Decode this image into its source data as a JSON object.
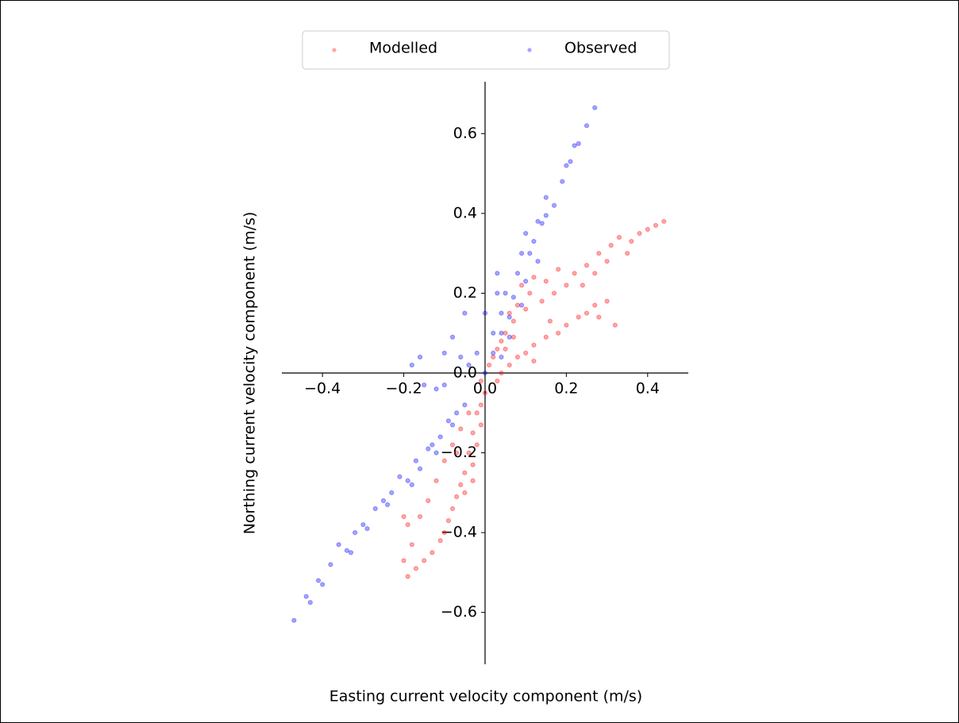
{
  "chart_data": {
    "type": "scatter",
    "xlabel": "Easting current velocity component (m/s)",
    "ylabel": "Northing current velocity component (m/s)",
    "xlim": [
      -0.5,
      0.5
    ],
    "ylim": [
      -0.73,
      0.73
    ],
    "xticks": [
      {
        "value": -0.4,
        "label": "−0.4"
      },
      {
        "value": -0.2,
        "label": "−0.2"
      },
      {
        "value": 0,
        "label": "0.0"
      },
      0.2,
      0.4
    ],
    "yticks": [
      {
        "value": -0.6,
        "label": "−0.6"
      },
      {
        "value": -0.4,
        "label": "−0.4"
      },
      {
        "value": -0.2,
        "label": "−0.2"
      },
      {
        "value": 0,
        "label": "0.0"
      },
      0.2,
      0.4,
      0.6
    ],
    "legend": "upper center",
    "series": [
      {
        "name": "Modelled",
        "color": "#ff0000",
        "x": [
          0.44,
          0.42,
          0.4,
          0.38,
          0.36,
          0.35,
          0.33,
          0.31,
          0.3,
          0.28,
          0.27,
          0.25,
          0.24,
          0.22,
          0.2,
          0.18,
          0.17,
          0.15,
          0.14,
          0.12,
          0.11,
          0.1,
          0.09,
          0.08,
          0.07,
          0.06,
          0.05,
          0.04,
          0.03,
          0.02,
          0.01,
          0.3,
          0.27,
          0.25,
          0.23,
          0.2,
          0.18,
          0.15,
          0.12,
          0.1,
          0.08,
          0.06,
          0.04,
          0.03,
          0.12,
          0.16,
          0.32,
          0.28,
          0.07,
          0.05,
          0.0,
          -0.01,
          -0.02,
          -0.01,
          -0.03,
          -0.02,
          -0.04,
          -0.03,
          -0.05,
          -0.06,
          -0.07,
          -0.08,
          -0.09,
          -0.1,
          -0.11,
          -0.13,
          -0.15,
          -0.17,
          -0.19,
          -0.2,
          -0.18,
          -0.19,
          -0.16,
          -0.14,
          -0.12,
          -0.1,
          -0.08,
          -0.06,
          -0.04,
          -0.2,
          -0.05,
          -0.03,
          -0.07,
          -0.01
        ],
        "y": [
          0.38,
          0.37,
          0.36,
          0.35,
          0.33,
          0.3,
          0.34,
          0.32,
          0.28,
          0.3,
          0.25,
          0.27,
          0.22,
          0.25,
          0.22,
          0.26,
          0.2,
          0.23,
          0.18,
          0.24,
          0.2,
          0.16,
          0.22,
          0.17,
          0.13,
          0.15,
          0.1,
          0.08,
          0.06,
          0.04,
          0.02,
          0.18,
          0.17,
          0.15,
          0.14,
          0.12,
          0.1,
          0.09,
          0.07,
          0.05,
          0.04,
          0.02,
          0.0,
          -0.02,
          0.03,
          0.13,
          0.12,
          0.14,
          0.09,
          0.06,
          -0.05,
          -0.08,
          -0.1,
          -0.13,
          -0.15,
          -0.18,
          -0.2,
          -0.23,
          -0.25,
          -0.28,
          -0.31,
          -0.34,
          -0.37,
          -0.4,
          -0.42,
          -0.45,
          -0.47,
          -0.49,
          -0.51,
          -0.47,
          -0.43,
          -0.38,
          -0.36,
          -0.32,
          -0.27,
          -0.22,
          -0.18,
          -0.14,
          -0.1,
          -0.36,
          -0.3,
          -0.27,
          -0.2,
          -0.02
        ]
      },
      {
        "name": "Observed",
        "color": "#0000ff",
        "x": [
          0.27,
          0.25,
          0.23,
          0.22,
          0.21,
          0.2,
          0.19,
          0.15,
          0.17,
          0.15,
          0.14,
          0.13,
          0.1,
          0.12,
          0.09,
          0.11,
          0.13,
          0.03,
          0.08,
          0.1,
          0.03,
          0.05,
          0.07,
          0.09,
          0.0,
          0.04,
          0.06,
          -0.05,
          0.02,
          0.04,
          0.06,
          -0.08,
          -0.02,
          0.02,
          0.04,
          -0.1,
          -0.06,
          0.0,
          -0.04,
          -0.47,
          -0.44,
          -0.43,
          -0.41,
          -0.4,
          -0.38,
          -0.36,
          -0.34,
          -0.33,
          -0.32,
          -0.3,
          -0.29,
          -0.27,
          -0.25,
          -0.24,
          -0.23,
          -0.21,
          -0.19,
          -0.18,
          -0.17,
          -0.16,
          -0.14,
          -0.13,
          -0.12,
          -0.11,
          -0.09,
          -0.08,
          -0.07,
          -0.05,
          -0.12,
          -0.1,
          -0.15,
          -0.18,
          -0.16
        ],
        "y": [
          0.665,
          0.62,
          0.575,
          0.57,
          0.53,
          0.52,
          0.48,
          0.44,
          0.42,
          0.395,
          0.375,
          0.38,
          0.35,
          0.33,
          0.3,
          0.3,
          0.28,
          0.25,
          0.25,
          0.23,
          0.2,
          0.2,
          0.19,
          0.17,
          0.15,
          0.15,
          0.14,
          0.15,
          0.1,
          0.1,
          0.09,
          0.09,
          0.05,
          0.05,
          0.04,
          0.05,
          0.04,
          0.0,
          0.02,
          -0.62,
          -0.56,
          -0.575,
          -0.52,
          -0.53,
          -0.48,
          -0.43,
          -0.445,
          -0.45,
          -0.4,
          -0.38,
          -0.39,
          -0.34,
          -0.32,
          -0.33,
          -0.3,
          -0.26,
          -0.27,
          -0.28,
          -0.22,
          -0.24,
          -0.19,
          -0.18,
          -0.2,
          -0.16,
          -0.12,
          -0.13,
          -0.1,
          -0.08,
          -0.04,
          -0.03,
          -0.03,
          0.02,
          0.04
        ]
      }
    ]
  }
}
